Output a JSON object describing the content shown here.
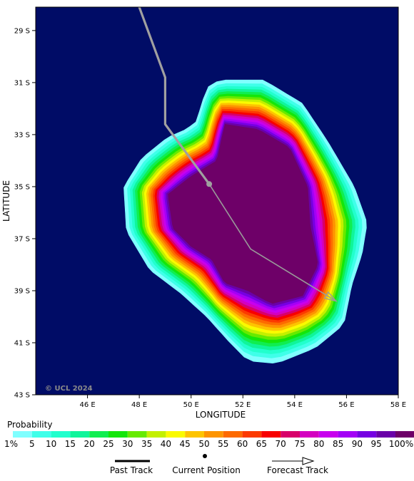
{
  "map": {
    "background": "#000c66",
    "xlabel": "LONGITUDE",
    "ylabel": "LATITUDE",
    "x_range": [
      44,
      58
    ],
    "y_range": [
      -43,
      -28.1
    ],
    "x_ticks": [
      {
        "value": 46,
        "label": "46 E"
      },
      {
        "value": 48,
        "label": "48 E"
      },
      {
        "value": 50,
        "label": "50 E"
      },
      {
        "value": 52,
        "label": "52 E"
      },
      {
        "value": 54,
        "label": "54 E"
      },
      {
        "value": 56,
        "label": "56 E"
      },
      {
        "value": 58,
        "label": "58 E"
      }
    ],
    "y_ticks": [
      {
        "value": -29,
        "label": "29 S"
      },
      {
        "value": -31,
        "label": "31 S"
      },
      {
        "value": -33,
        "label": "33 S"
      },
      {
        "value": -35,
        "label": "35 S"
      },
      {
        "value": -37,
        "label": "37 S"
      },
      {
        "value": -39,
        "label": "39 S"
      },
      {
        "value": -41,
        "label": "41 S"
      },
      {
        "value": -43,
        "label": "43 S"
      }
    ],
    "copyright": "© UCL 2024"
  },
  "probability_field": {
    "core": [
      [
        51.3,
        -32.6
      ],
      [
        52.6,
        -32.8
      ],
      [
        53.8,
        -33.5
      ],
      [
        54.5,
        -35.0
      ],
      [
        54.6,
        -36.5
      ],
      [
        54.9,
        -38.0
      ],
      [
        54.3,
        -39.2
      ],
      [
        53.1,
        -39.5
      ],
      [
        52.2,
        -39.0
      ],
      [
        51.3,
        -38.7
      ],
      [
        50.8,
        -37.8
      ],
      [
        50.0,
        -37.3
      ],
      [
        49.3,
        -36.6
      ],
      [
        49.1,
        -35.3
      ],
      [
        50.0,
        -34.6
      ],
      [
        51.0,
        -34.0
      ]
    ],
    "envelope": [
      [
        51.1,
        -30.9
      ],
      [
        52.8,
        -30.9
      ],
      [
        54.3,
        -31.8
      ],
      [
        55.3,
        -33.3
      ],
      [
        56.3,
        -35.0
      ],
      [
        56.8,
        -36.4
      ],
      [
        56.6,
        -37.6
      ],
      [
        56.2,
        -38.8
      ],
      [
        55.9,
        -40.3
      ],
      [
        54.8,
        -41.2
      ],
      [
        53.3,
        -41.8
      ],
      [
        52.2,
        -41.7
      ],
      [
        51.5,
        -41.0
      ],
      [
        50.6,
        -40.0
      ],
      [
        49.6,
        -39.1
      ],
      [
        48.4,
        -38.2
      ],
      [
        47.5,
        -36.7
      ],
      [
        47.4,
        -35.0
      ],
      [
        48.1,
        -33.9
      ],
      [
        49.1,
        -33.1
      ],
      [
        49.8,
        -32.8
      ],
      [
        50.2,
        -32.5
      ],
      [
        50.6,
        -31.2
      ]
    ],
    "colorbar": [
      {
        "label": "1%",
        "color": "#80ffff"
      },
      {
        "label": "5",
        "color": "#3fffe9"
      },
      {
        "label": "10",
        "color": "#22ffcd"
      },
      {
        "label": "15",
        "color": "#10f59a"
      },
      {
        "label": "20",
        "color": "#10ee50"
      },
      {
        "label": "25",
        "color": "#14e60a"
      },
      {
        "label": "30",
        "color": "#66ea00"
      },
      {
        "label": "35",
        "color": "#c3f000"
      },
      {
        "label": "40",
        "color": "#fafa00"
      },
      {
        "label": "45",
        "color": "#fdc400"
      },
      {
        "label": "50",
        "color": "#fd9400"
      },
      {
        "label": "55",
        "color": "#fd6a00"
      },
      {
        "label": "60",
        "color": "#fc3a00"
      },
      {
        "label": "65",
        "color": "#f80000"
      },
      {
        "label": "70",
        "color": "#d8006a"
      },
      {
        "label": "75",
        "color": "#d400c0"
      },
      {
        "label": "80",
        "color": "#c800ee"
      },
      {
        "label": "85",
        "color": "#a400f6"
      },
      {
        "label": "90",
        "color": "#7600e2"
      },
      {
        "label": "95",
        "color": "#6a00a8"
      },
      {
        "label": "100%",
        "color": "#6e0068"
      }
    ]
  },
  "tracks": {
    "past": [
      [
        47.7,
        -27.8
      ],
      [
        48.0,
        -28.1
      ],
      [
        49.0,
        -30.8
      ],
      [
        49.0,
        -32.6
      ],
      [
        50.7,
        -34.9
      ]
    ],
    "forecast": [
      [
        50.7,
        -34.9
      ],
      [
        52.3,
        -37.4
      ],
      [
        55.6,
        -39.4
      ]
    ],
    "current": [
      50.7,
      -34.9
    ],
    "past_color": "#a0a0a0",
    "forecast_color": "#9a9a9a"
  },
  "legend": {
    "title": "Probability",
    "past_label": "Past Track",
    "current_label": "Current Position",
    "forecast_label": "Forecast Track"
  }
}
